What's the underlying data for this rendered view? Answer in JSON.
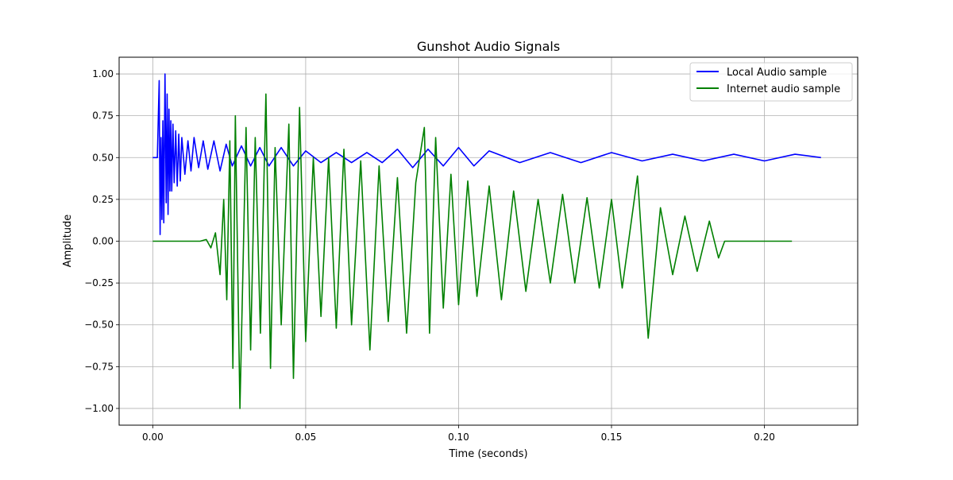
{
  "chart_data": {
    "type": "line",
    "title": "Gunshot Audio Signals",
    "xlabel": "Time (seconds)",
    "ylabel": "Amplitude",
    "xlim": [
      -0.011,
      0.2305
    ],
    "ylim": [
      -1.1,
      1.1
    ],
    "xticks": [
      0.0,
      0.05,
      0.1,
      0.15,
      0.2
    ],
    "xtick_labels": [
      "0.00",
      "0.05",
      "0.10",
      "0.15",
      "0.20"
    ],
    "yticks": [
      1.0,
      0.75,
      0.5,
      0.25,
      0.0,
      -0.25,
      -0.5,
      -0.75,
      -1.0
    ],
    "ytick_labels": [
      "1.00",
      "0.75",
      "0.50",
      "0.25",
      "0.00",
      "−0.25",
      "−0.50",
      "−0.75",
      "−1.00"
    ],
    "grid": true,
    "legend_position": "top-right",
    "series": [
      {
        "name": "Local Audio sample",
        "color": "#0000ff",
        "x": [
          0.0,
          0.0015,
          0.0021,
          0.0024,
          0.0027,
          0.003,
          0.0033,
          0.0036,
          0.004,
          0.0044,
          0.0047,
          0.005,
          0.0053,
          0.0056,
          0.0059,
          0.0062,
          0.0066,
          0.007,
          0.0075,
          0.008,
          0.0085,
          0.009,
          0.0095,
          0.0105,
          0.0115,
          0.0125,
          0.0135,
          0.015,
          0.0165,
          0.018,
          0.02,
          0.022,
          0.024,
          0.026,
          0.029,
          0.032,
          0.035,
          0.038,
          0.042,
          0.046,
          0.05,
          0.055,
          0.06,
          0.065,
          0.07,
          0.075,
          0.08,
          0.085,
          0.09,
          0.095,
          0.1,
          0.105,
          0.11,
          0.12,
          0.13,
          0.14,
          0.15,
          0.16,
          0.17,
          0.18,
          0.19,
          0.2,
          0.21,
          0.2185
        ],
        "y": [
          0.5,
          0.5,
          0.96,
          0.04,
          0.62,
          0.13,
          0.72,
          0.11,
          1.0,
          0.23,
          0.88,
          0.16,
          0.79,
          0.3,
          0.72,
          0.3,
          0.7,
          0.35,
          0.66,
          0.33,
          0.64,
          0.36,
          0.62,
          0.4,
          0.6,
          0.42,
          0.62,
          0.44,
          0.6,
          0.43,
          0.6,
          0.42,
          0.58,
          0.45,
          0.57,
          0.45,
          0.56,
          0.45,
          0.56,
          0.45,
          0.54,
          0.47,
          0.53,
          0.47,
          0.53,
          0.47,
          0.55,
          0.44,
          0.55,
          0.45,
          0.56,
          0.45,
          0.54,
          0.47,
          0.53,
          0.47,
          0.53,
          0.48,
          0.52,
          0.48,
          0.52,
          0.48,
          0.52,
          0.5
        ]
      },
      {
        "name": "Internet audio sample",
        "color": "#008000",
        "x": [
          0.0,
          0.009,
          0.012,
          0.0155,
          0.0175,
          0.019,
          0.0205,
          0.022,
          0.0232,
          0.0242,
          0.0252,
          0.0262,
          0.027,
          0.0285,
          0.0305,
          0.032,
          0.0335,
          0.0352,
          0.037,
          0.0385,
          0.04,
          0.042,
          0.0445,
          0.046,
          0.048,
          0.05,
          0.0525,
          0.055,
          0.0575,
          0.06,
          0.0625,
          0.065,
          0.068,
          0.071,
          0.074,
          0.077,
          0.08,
          0.083,
          0.086,
          0.0888,
          0.0905,
          0.0925,
          0.095,
          0.0975,
          0.1,
          0.103,
          0.106,
          0.11,
          0.114,
          0.118,
          0.122,
          0.126,
          0.13,
          0.134,
          0.138,
          0.142,
          0.146,
          0.15,
          0.1535,
          0.1585,
          0.162,
          0.166,
          0.17,
          0.174,
          0.178,
          0.182,
          0.185,
          0.187,
          0.192,
          0.2,
          0.209
        ],
        "y": [
          0.0,
          0.0,
          0.0,
          0.0,
          0.01,
          -0.04,
          0.05,
          -0.2,
          0.25,
          -0.35,
          0.6,
          -0.76,
          0.75,
          -1.0,
          0.68,
          -0.65,
          0.62,
          -0.55,
          0.88,
          -0.76,
          0.56,
          -0.5,
          0.7,
          -0.82,
          0.8,
          -0.6,
          0.5,
          -0.45,
          0.5,
          -0.52,
          0.55,
          -0.5,
          0.48,
          -0.65,
          0.45,
          -0.48,
          0.38,
          -0.55,
          0.35,
          0.68,
          -0.55,
          0.62,
          -0.4,
          0.4,
          -0.38,
          0.36,
          -0.33,
          0.33,
          -0.35,
          0.3,
          -0.3,
          0.25,
          -0.25,
          0.28,
          -0.25,
          0.26,
          -0.28,
          0.25,
          -0.28,
          0.39,
          -0.58,
          0.2,
          -0.2,
          0.15,
          -0.18,
          0.12,
          -0.1,
          0.0,
          0.0,
          0.0,
          0.0
        ]
      }
    ]
  }
}
